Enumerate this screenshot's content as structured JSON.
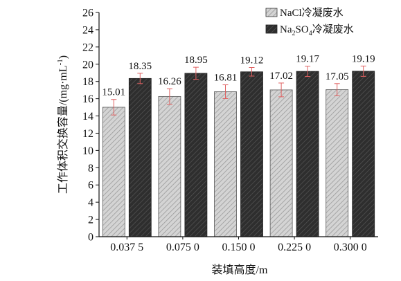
{
  "chart_data": {
    "type": "bar",
    "categories": [
      "0.037 5",
      "0.075 0",
      "0.150 0",
      "0.225 0",
      "0.300 0"
    ],
    "series": [
      {
        "name": "NaCl冷凝废水",
        "values": [
          15.01,
          16.26,
          16.81,
          17.02,
          17.05
        ],
        "errors": [
          0.9,
          0.9,
          0.8,
          0.8,
          0.7
        ],
        "color": "#cfcfcf",
        "pattern": "hatch"
      },
      {
        "name": "Na2SO4冷凝废水",
        "values": [
          18.35,
          18.95,
          19.12,
          19.17,
          19.19
        ],
        "errors": [
          0.6,
          0.7,
          0.5,
          0.6,
          0.6
        ],
        "color": "#333333",
        "pattern": "hatch"
      }
    ],
    "data_labels": [
      [
        "15.01",
        "16.26",
        "16.81",
        "17.02",
        "17.05"
      ],
      [
        "18.35",
        "18.95",
        "19.12",
        "19.17",
        "19.19"
      ]
    ],
    "xlabel": "装填高度/m",
    "ylabel": "工作体积交换容量/(mg·mL⁻¹)",
    "ylim": [
      0,
      26
    ],
    "yticks": [
      0,
      2,
      4,
      6,
      8,
      10,
      12,
      14,
      16,
      18,
      20,
      22,
      24,
      26
    ],
    "legend_position": "top-right",
    "grid": false,
    "error_bar_color": "#e06060"
  }
}
